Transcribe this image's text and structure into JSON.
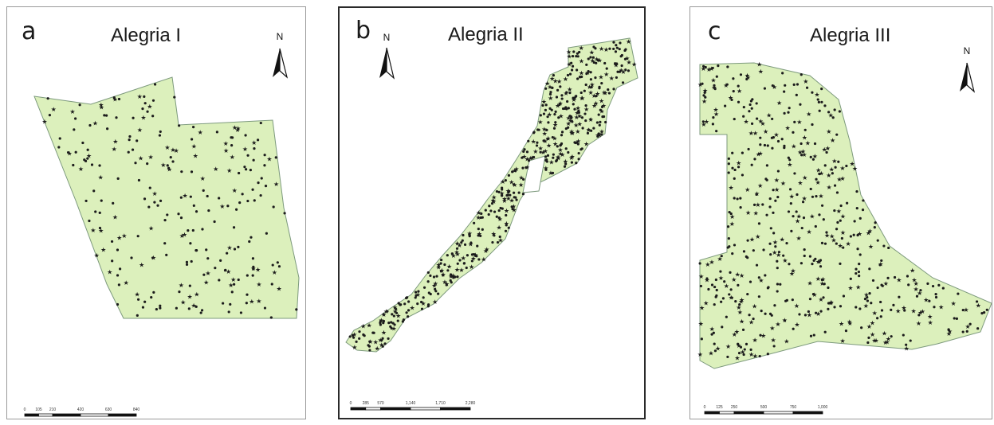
{
  "panels": [
    {
      "letter": "a",
      "title": "Alegria I",
      "north_label": "N",
      "scale_ticks": [
        "0",
        "105",
        "210",
        "420",
        "630",
        "840"
      ],
      "fill_color": "#dcf0bc",
      "point_color": "#1c1c1c"
    },
    {
      "letter": "b",
      "title": "Alegria II",
      "north_label": "N",
      "scale_ticks": [
        "0",
        "285",
        "570",
        "1,140",
        "1,710",
        "2,280"
      ],
      "fill_color": "#dcf0bc",
      "point_color": "#1c1c1c"
    },
    {
      "letter": "c",
      "title": "Alegria III",
      "north_label": "N",
      "scale_ticks": [
        "0",
        "125",
        "250",
        "500",
        "750",
        "1,000"
      ],
      "fill_color": "#dcf0bc",
      "point_color": "#1c1c1c"
    }
  ]
}
